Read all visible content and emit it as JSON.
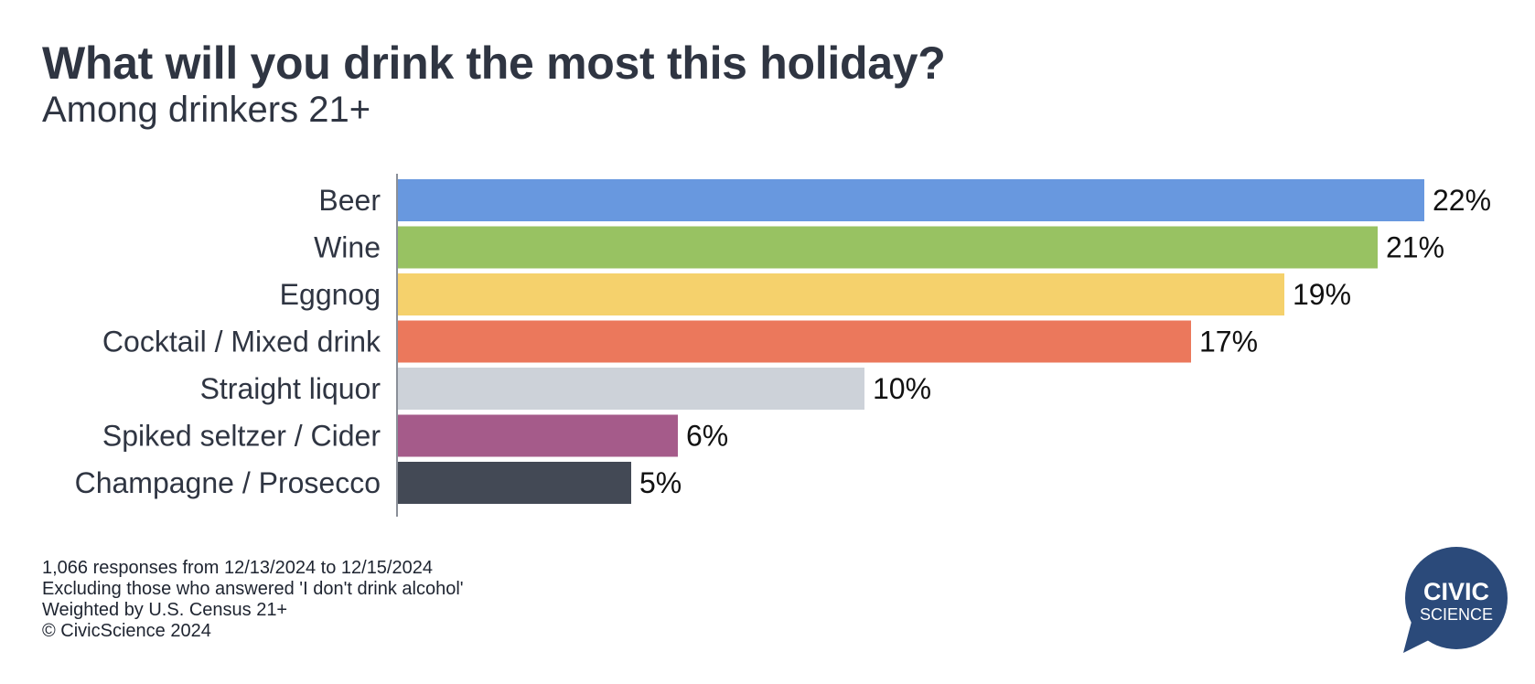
{
  "chart_data": {
    "type": "bar",
    "orientation": "horizontal",
    "title": "What will you drink the most this holiday?",
    "subtitle": "Among drinkers 21+",
    "categories": [
      "Beer",
      "Wine",
      "Eggnog",
      "Cocktail / Mixed drink",
      "Straight liquor",
      "Spiked seltzer / Cider",
      "Champagne / Prosecco"
    ],
    "values": [
      22,
      21,
      19,
      17,
      10,
      6,
      5
    ],
    "value_labels": [
      "22%",
      "21%",
      "19%",
      "17%",
      "10%",
      "6%",
      "5%"
    ],
    "colors": [
      "#6898df",
      "#98c262",
      "#f5d16c",
      "#eb785c",
      "#cdd2d9",
      "#a55b8a",
      "#434955"
    ],
    "unit": "%",
    "xlim": [
      0,
      22
    ],
    "grid": false,
    "legend": "none"
  },
  "footnotes": {
    "line1": "1,066 responses from 12/13/2024 to 12/15/2024",
    "line2": "Excluding those who answered 'I don't drink alcohol'",
    "line3": "Weighted by U.S. Census 21+",
    "line4": "© CivicScience 2024"
  },
  "logo": {
    "line1": "CIVIC",
    "line2": "SCIENCE",
    "color": "#2b4a7a"
  }
}
